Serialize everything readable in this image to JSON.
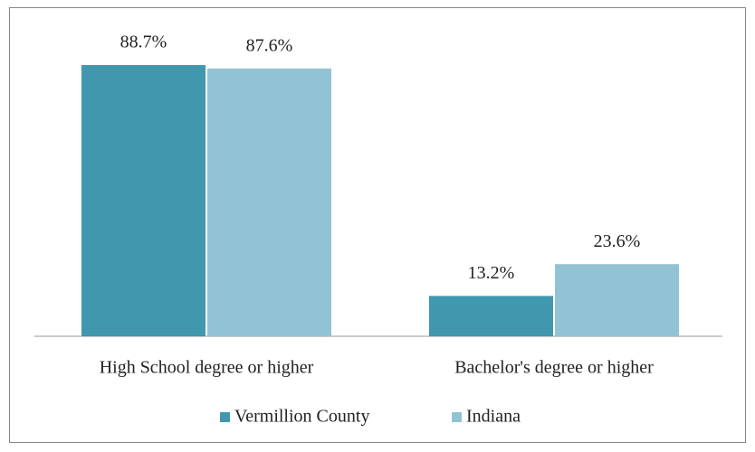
{
  "chart_data": {
    "type": "bar",
    "categories": [
      "High School degree or higher",
      "Bachelor's degree or higher"
    ],
    "series": [
      {
        "name": "Vermillion County",
        "color": "#4097ae",
        "values": [
          88.7,
          13.2
        ],
        "value_labels": [
          "88.7%",
          "13.2%"
        ]
      },
      {
        "name": "Indiana",
        "color": "#92c3d4",
        "values": [
          87.6,
          23.6
        ],
        "value_labels": [
          "87.6%",
          "23.6%"
        ]
      }
    ],
    "legend": "bottom"
  }
}
